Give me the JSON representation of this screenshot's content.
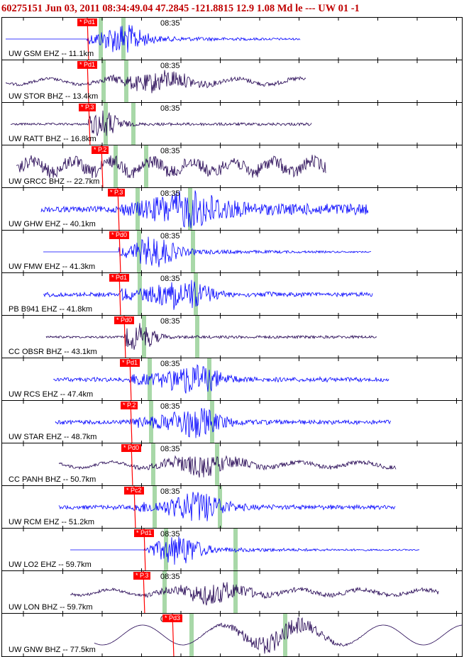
{
  "header": "60275151 Jun 03, 2011 08:34:49.04   47.2845 -121.8815 12.9 1.08 Md le ---  UW 01   -1",
  "time_mark": "08:35",
  "colors": {
    "header": "#c00000",
    "blue_trace": "#0000ff",
    "dark_trace": "#200050",
    "pick": "#ff0000",
    "window": "#a8d8a8"
  },
  "traces": [
    {
      "label": "UW GSM EHZ -- 11.1km",
      "pick": "* Pd1",
      "color": "blue",
      "style": "blue_flat"
    },
    {
      "label": "UW STOR BHZ -- 13.4km",
      "pick": "* Pd1",
      "color": "dark",
      "style": "dark_wave"
    },
    {
      "label": "UW RATT BHZ -- 16.8km",
      "pick": "* P.3",
      "color": "dark",
      "style": "dark_quake"
    },
    {
      "label": "UW GRCC BHZ -- 22.7km",
      "pick": "* P.2",
      "color": "dark",
      "style": "dark_noisy"
    },
    {
      "label": "UW GHW EHZ -- 40.1km",
      "pick": "* P.3",
      "color": "blue",
      "style": "blue_noisy"
    },
    {
      "label": "UW FMW EHZ -- 41.3km",
      "pick": "* Pd0",
      "color": "blue",
      "style": "blue_flat"
    },
    {
      "label": "PB B941 EHZ -- 41.8km",
      "pick": "* Pd1",
      "color": "blue",
      "style": "blue_quake"
    },
    {
      "label": "CC OBSR BHZ -- 43.1km",
      "pick": "* Pd0",
      "color": "dark",
      "style": "dark_quake"
    },
    {
      "label": "UW RCS EHZ -- 47.4km",
      "pick": "* Pd1",
      "color": "blue",
      "style": "blue_quake"
    },
    {
      "label": "UW STAR EHZ -- 48.7km",
      "pick": "* P.2",
      "color": "blue",
      "style": "blue_quake"
    },
    {
      "label": "CC PANH BHZ -- 50.7km",
      "pick": "* Pd0",
      "color": "dark",
      "style": "dark_wave"
    },
    {
      "label": "UW RCM EHZ -- 51.2km",
      "pick": "* Pc2",
      "color": "blue",
      "style": "blue_quake"
    },
    {
      "label": "UW LO2 EHZ -- 59.7km",
      "pick": "* Pd1",
      "color": "blue",
      "style": "blue_flat"
    },
    {
      "label": "UW LON BHZ -- 59.7km",
      "pick": "* P.3",
      "color": "dark",
      "style": "dark_wave"
    },
    {
      "label": "UW GNW BHZ -- 77.5km",
      "pick": "* Pd3",
      "color": "dark",
      "style": "dark_big"
    }
  ]
}
